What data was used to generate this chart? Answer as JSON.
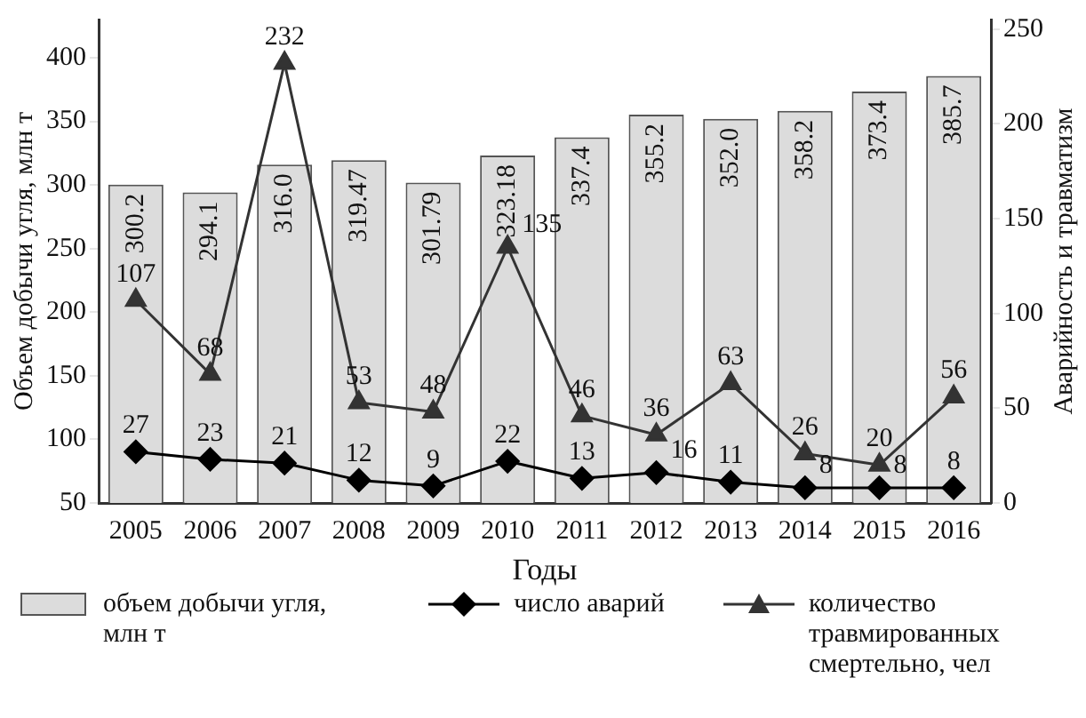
{
  "chart_data": {
    "type": "bar",
    "xlabel": "Годы",
    "ylabel": "Объем добычи угля, млн т",
    "y2label": "Аварийность и травматизм",
    "categories": [
      "2005",
      "2006",
      "2007",
      "2008",
      "2009",
      "2010",
      "2011",
      "2012",
      "2013",
      "2014",
      "2015",
      "2016"
    ],
    "ylim": [
      50,
      430
    ],
    "yticks": [
      50,
      100,
      150,
      200,
      250,
      300,
      350,
      400
    ],
    "y2lim": [
      0,
      255
    ],
    "y2ticks": [
      0,
      50,
      100,
      150,
      200,
      250
    ],
    "legend": "bottom",
    "grid": false,
    "series": [
      {
        "name": "объем добычи угля, млн т",
        "color": "#dcdcdc",
        "values": [
          300.2,
          294.1,
          316.0,
          319.47,
          301.79,
          323.18,
          337.4,
          355.2,
          352.0,
          358.2,
          373.4,
          385.7
        ],
        "value_labels": [
          "300.2",
          "294.1",
          "316.0",
          "319.47",
          "301.79",
          "323.18",
          "337.4",
          "355.2",
          "352.0",
          "358.2",
          "373.4",
          "385.7"
        ]
      },
      {
        "name": "число аварий",
        "type": "line",
        "axis": "y2",
        "marker": "diamond",
        "color": "#000000",
        "values": [
          27,
          23,
          21,
          12,
          9,
          22,
          13,
          16,
          11,
          8,
          8,
          8
        ],
        "value_labels": [
          "27",
          "23",
          "21",
          "12",
          "9",
          "22",
          "13",
          "16",
          "11",
          "8",
          "8",
          "8"
        ]
      },
      {
        "name": "количество травмированных смертельно, чел",
        "type": "line",
        "axis": "y2",
        "marker": "triangle",
        "color": "#333333",
        "values": [
          107,
          68,
          232,
          53,
          48,
          135,
          46,
          36,
          63,
          26,
          20,
          56
        ],
        "value_labels": [
          "107",
          "68",
          "232",
          "53",
          "48",
          "135",
          "46",
          "36",
          "63",
          "26",
          "20",
          "56"
        ]
      }
    ]
  }
}
